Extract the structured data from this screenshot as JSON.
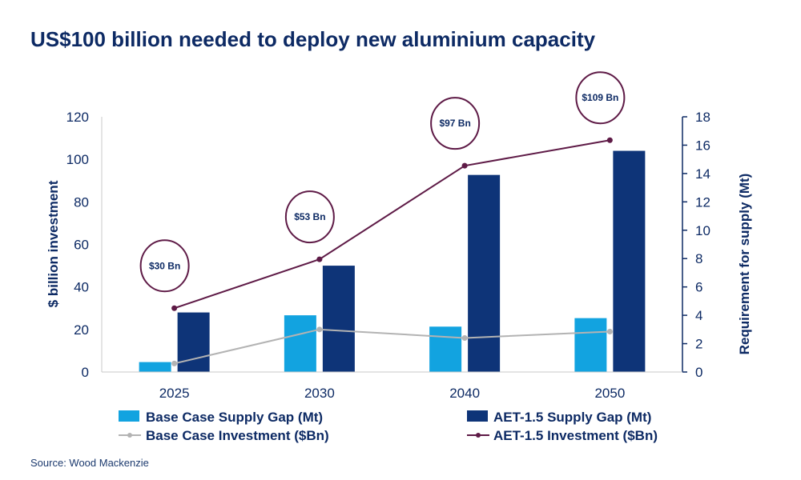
{
  "header": {
    "title": "US$100 billion needed to deploy new aluminium capacity"
  },
  "footer": {
    "source": "Source: Wood Mackenzie"
  },
  "colors": {
    "base_gap": "#12a3e0",
    "aet_gap": "#0e3478",
    "base_inv": "#b3b3b3",
    "aet_inv": "#5e1a46",
    "axis": "#0d2a64"
  },
  "chart_data": {
    "type": "bar",
    "categories": [
      "2025",
      "2030",
      "2040",
      "2050"
    ],
    "ylabel": "$ billion investment",
    "ylabel_right": "Requirement for supply (Mt)",
    "ylim": [
      0,
      120
    ],
    "ylim_right": [
      0,
      18
    ],
    "yticks": [
      "0",
      "20",
      "40",
      "60",
      "80",
      "100",
      "120"
    ],
    "yticks_right": [
      "0",
      "2",
      "4",
      "6",
      "8",
      "10",
      "12",
      "14",
      "16",
      "18"
    ],
    "series": [
      {
        "name": "Base Case Supply Gap (Mt)",
        "type": "bar",
        "axis": "right",
        "values": [
          0.7,
          4.0,
          3.2,
          3.8
        ]
      },
      {
        "name": "AET-1.5 Supply Gap (Mt)",
        "type": "bar",
        "axis": "right",
        "values": [
          4.2,
          7.5,
          13.9,
          15.6
        ]
      },
      {
        "name": "Base Case Investment ($Bn)",
        "type": "line",
        "axis": "left",
        "values": [
          4,
          20,
          16,
          19
        ]
      },
      {
        "name": "AET-1.5 Investment ($Bn)",
        "type": "line",
        "axis": "left",
        "values": [
          30,
          53,
          97,
          109
        ]
      }
    ],
    "annotations": [
      "$30 Bn",
      "$53 Bn",
      "$97 Bn",
      "$109 Bn"
    ],
    "legend": "bottom"
  }
}
